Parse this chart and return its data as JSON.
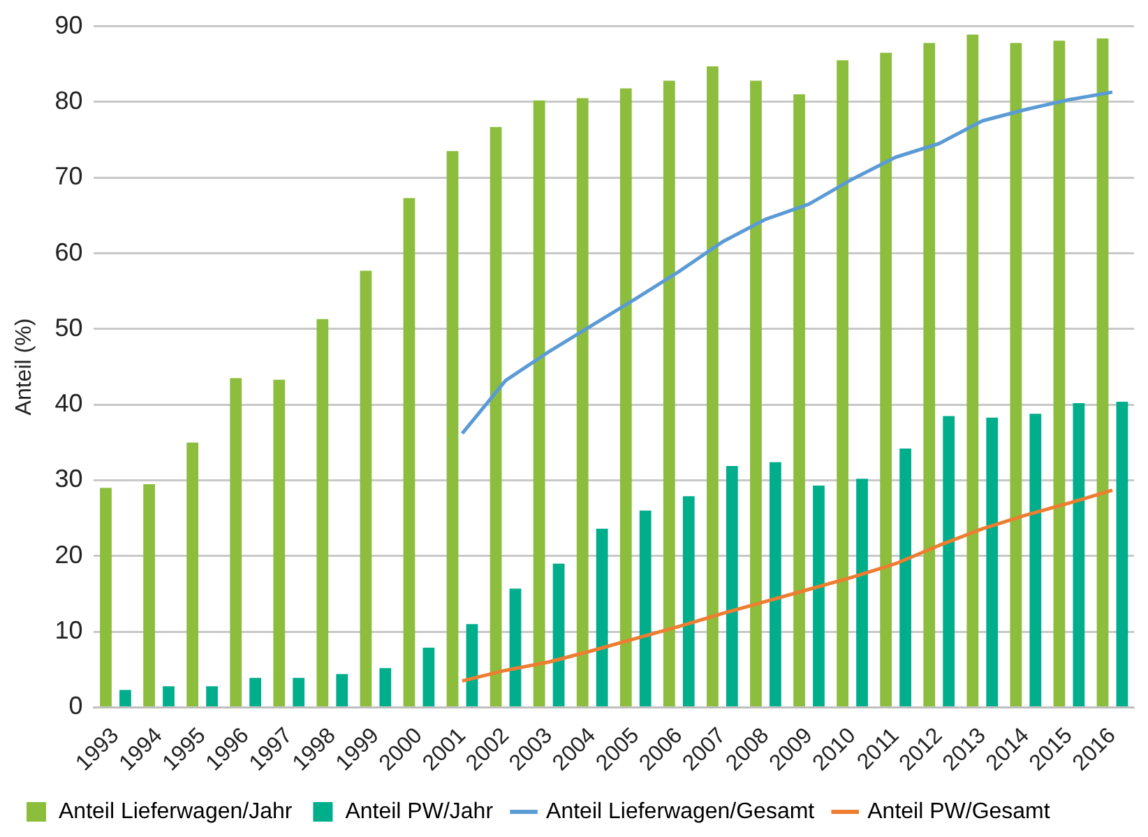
{
  "chart_data": {
    "type": "bar",
    "ylabel": "Anteil (%)",
    "categories": [
      "1993",
      "1994",
      "1995",
      "1996",
      "1997",
      "1998",
      "1999",
      "2000",
      "2001",
      "2002",
      "2003",
      "2004",
      "2005",
      "2006",
      "2007",
      "2008",
      "2009",
      "2010",
      "2011",
      "2012",
      "2013",
      "2014",
      "2015",
      "2016"
    ],
    "series": [
      {
        "name": "Anteil Lieferwagen/Jahr",
        "color": "#8cbd3c",
        "values": [
          29,
          29.5,
          35,
          43.5,
          43.3,
          51.3,
          57.7,
          67.3,
          73.5,
          76.7,
          80.2,
          80.5,
          81.8,
          82.8,
          84.7,
          82.8,
          81,
          85.5,
          86.5,
          87.8,
          88.9,
          87.8,
          88.1,
          88.4
        ]
      },
      {
        "name": "Anteil PW/Jahr",
        "color": "#00ae8b",
        "values": [
          2.3,
          2.8,
          2.8,
          3.9,
          3.9,
          4.4,
          5.2,
          7.9,
          11,
          15.7,
          19,
          23.6,
          26,
          27.9,
          31.9,
          32.4,
          29.3,
          30.2,
          34.2,
          38.5,
          38.3,
          38.8,
          40.2,
          40.4
        ]
      },
      {
        "name": "Anteil Lieferwagen/Gesamt",
        "type": "line",
        "color": "#5b9bd5",
        "values": [
          null,
          null,
          null,
          null,
          null,
          null,
          null,
          null,
          36.2,
          43.2,
          47,
          50.5,
          54,
          57.6,
          61.5,
          64.5,
          66.5,
          69.8,
          72.7,
          74.5,
          77.5,
          79,
          80.3,
          81.3
        ]
      },
      {
        "name": "Anteil PW/Gesamt",
        "type": "line",
        "color": "#ed7d31",
        "values": [
          null,
          null,
          null,
          null,
          null,
          null,
          null,
          null,
          3.5,
          4.9,
          6,
          7.5,
          9.1,
          10.7,
          12.4,
          14,
          15.6,
          17.2,
          19,
          21.4,
          23.6,
          25.4,
          27,
          28.7
        ]
      }
    ],
    "ylim": [
      0,
      90
    ],
    "yticks": [
      0,
      10,
      20,
      30,
      40,
      50,
      60,
      70,
      80,
      90
    ],
    "grid": "y",
    "legend": "bottom",
    "marker": "none",
    "line_style": "solid"
  }
}
